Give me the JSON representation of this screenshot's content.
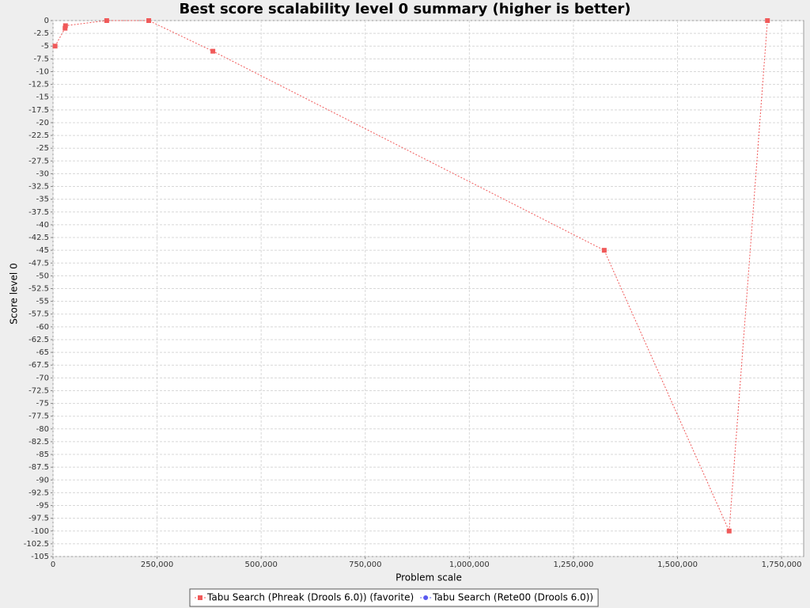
{
  "chart_data": {
    "type": "line",
    "title": "Best score scalability level 0 summary (higher is better)",
    "x_label": "Problem scale",
    "y_label": "Score level 0",
    "series": [
      {
        "name": "Tabu Search (Phreak (Drools 6.0)) (favorite)",
        "color": "#f05a5a",
        "x": [
          5000,
          29000,
          30000,
          129000,
          230000,
          384000,
          1324000,
          1624000,
          1716000
        ],
        "values": [
          -5,
          -1.5,
          -1,
          0,
          0,
          -6,
          -45,
          -100,
          0
        ]
      },
      {
        "name": "Tabu Search (Rete00 (Drools 6.0))",
        "color": "#5a5af0",
        "x": [
          null,
          null,
          null,
          null,
          null,
          null,
          null,
          null,
          null
        ],
        "values": [
          null,
          null,
          null,
          null,
          null,
          null,
          null,
          null,
          null
        ]
      }
    ],
    "xlim": [
      0,
      1803000
    ],
    "xticks": [
      0,
      {
        "value": 250000,
        "label": "250,000"
      },
      {
        "value": 500000,
        "label": "500,000"
      },
      {
        "value": 750000,
        "label": "750,000"
      },
      {
        "value": 1000000,
        "label": "1,000,000"
      },
      {
        "value": 1250000,
        "label": "1,250,000"
      },
      {
        "value": 1500000,
        "label": "1,500,000"
      },
      {
        "value": 1750000,
        "label": "1,750,000"
      }
    ],
    "ylim": [
      -105,
      0
    ],
    "yticks": [
      0,
      -2.5,
      -5,
      -7.5,
      -10,
      -12.5,
      -15,
      -17.5,
      -20,
      -22.5,
      -25,
      -27.5,
      -30,
      -32.5,
      -35,
      -37.5,
      -40,
      -42.5,
      -45,
      -47.5,
      -50,
      -52.5,
      -55,
      -57.5,
      -60,
      -62.5,
      -65,
      -67.5,
      -70,
      -72.5,
      -75,
      -77.5,
      -80,
      -82.5,
      -85,
      -87.5,
      -90,
      -92.5,
      -95,
      -97.5,
      -100,
      -102.5,
      -105
    ],
    "grid": true
  }
}
